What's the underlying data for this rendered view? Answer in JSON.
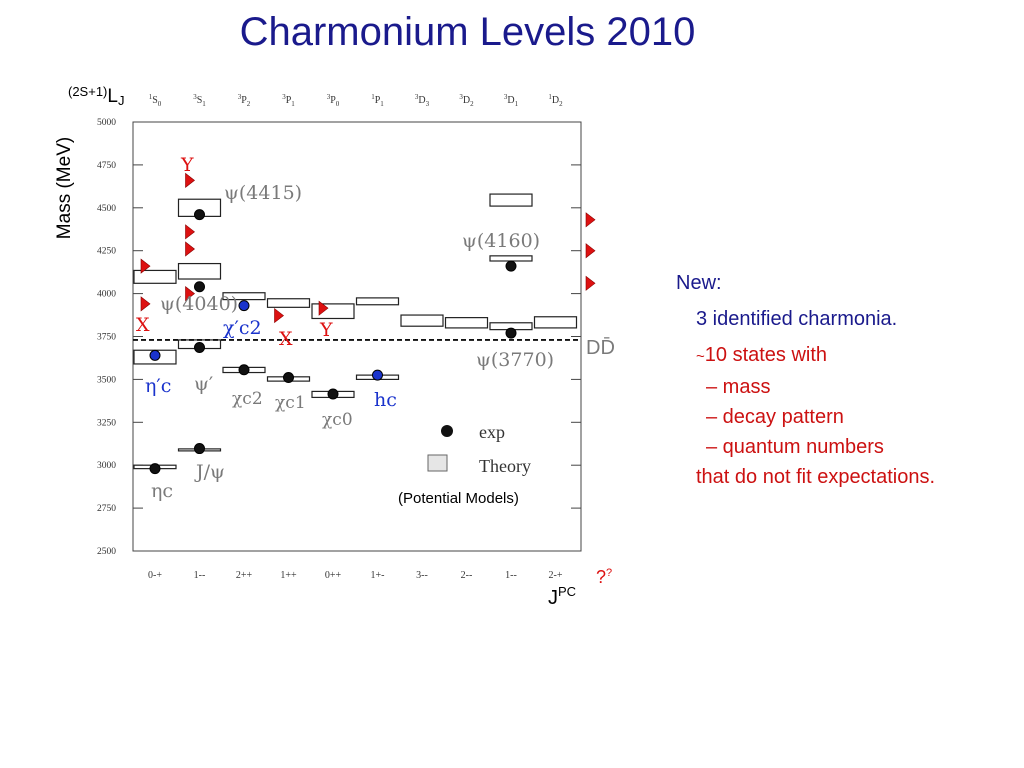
{
  "slide": {
    "title": "Charmonium Levels 2010"
  },
  "notes": {
    "heading": "New:",
    "identified": "3 identified charmonia.",
    "states_prefix": "~",
    "states": "10 states with",
    "items": [
      "– mass",
      "– decay pattern",
      "– quantum numbers"
    ],
    "conclusion": "that do not fit expectations."
  },
  "colors": {
    "title": "#1a1a8c",
    "note_blue": "#1a1a8c",
    "note_red": "#cc1111",
    "exotic_marker": "#dd1111",
    "new_state": "#1a33cc",
    "label_gray": "#7a7a7a",
    "axis_black": "#222222"
  },
  "chart_data": {
    "type": "scatter",
    "ylabel": "Mass (MeV)",
    "ylim": [
      2500,
      5000
    ],
    "yticks": [
      2500,
      2750,
      3000,
      3250,
      3500,
      3750,
      4000,
      4250,
      4500,
      4750,
      5000
    ],
    "top_label_prefix": "(2S+1)",
    "top_label_main": "L",
    "top_label_sub": "J",
    "columns": [
      {
        "top": "1S0",
        "top_sup": "1",
        "top_base": "S",
        "top_sub": "0",
        "bottom": "0-+"
      },
      {
        "top": "3S1",
        "top_sup": "3",
        "top_base": "S",
        "top_sub": "1",
        "bottom": "1--"
      },
      {
        "top": "3P2",
        "top_sup": "3",
        "top_base": "P",
        "top_sub": "2",
        "bottom": "2++"
      },
      {
        "top": "3P1",
        "top_sup": "3",
        "top_base": "P",
        "top_sub": "1",
        "bottom": "1++"
      },
      {
        "top": "3P0",
        "top_sup": "3",
        "top_base": "P",
        "top_sub": "0",
        "bottom": "0++"
      },
      {
        "top": "1P1",
        "top_sup": "1",
        "top_base": "P",
        "top_sub": "1",
        "bottom": "1+-"
      },
      {
        "top": "3D3",
        "top_sup": "3",
        "top_base": "D",
        "top_sub": "3",
        "bottom": "3--"
      },
      {
        "top": "3D2",
        "top_sup": "3",
        "top_base": "D",
        "top_sub": "2",
        "bottom": "2--"
      },
      {
        "top": "3D1",
        "top_sup": "3",
        "top_base": "D",
        "top_sub": "1",
        "bottom": "1--"
      },
      {
        "top": "1D2",
        "top_sup": "1",
        "top_base": "D",
        "top_sub": "2",
        "bottom": "2-+"
      }
    ],
    "xlabel_main": "J",
    "xlabel_sup": "PC",
    "unknown_label": "?",
    "unknown_sup": "?",
    "threshold": {
      "label": "DD̄",
      "mass": 3730
    },
    "theory_boxes": [
      {
        "col": 0,
        "low": 2980,
        "high": 3000
      },
      {
        "col": 0,
        "low": 3590,
        "high": 3670
      },
      {
        "col": 0,
        "low": 4060,
        "high": 4135
      },
      {
        "col": 1,
        "low": 3085,
        "high": 3095
      },
      {
        "col": 1,
        "low": 3680,
        "high": 3730
      },
      {
        "col": 1,
        "low": 4085,
        "high": 4175
      },
      {
        "col": 1,
        "low": 4450,
        "high": 4550
      },
      {
        "col": 2,
        "low": 3540,
        "high": 3570
      },
      {
        "col": 2,
        "low": 3965,
        "high": 4005
      },
      {
        "col": 3,
        "low": 3490,
        "high": 3515
      },
      {
        "col": 3,
        "low": 3920,
        "high": 3970
      },
      {
        "col": 4,
        "low": 3395,
        "high": 3430
      },
      {
        "col": 4,
        "low": 3855,
        "high": 3940
      },
      {
        "col": 5,
        "low": 3500,
        "high": 3525
      },
      {
        "col": 5,
        "low": 3935,
        "high": 3975
      },
      {
        "col": 6,
        "low": 3810,
        "high": 3875
      },
      {
        "col": 7,
        "low": 3800,
        "high": 3860
      },
      {
        "col": 8,
        "low": 3790,
        "high": 3830
      },
      {
        "col": 8,
        "low": 4190,
        "high": 4220
      },
      {
        "col": 8,
        "low": 4510,
        "high": 4580
      },
      {
        "col": 9,
        "low": 3800,
        "high": 3865
      }
    ],
    "exp_points": [
      {
        "col": 0,
        "mass": 2980,
        "color": "black"
      },
      {
        "col": 0,
        "mass": 3640,
        "color": "blue"
      },
      {
        "col": 1,
        "mass": 3097,
        "color": "black"
      },
      {
        "col": 1,
        "mass": 3686,
        "color": "black"
      },
      {
        "col": 1,
        "mass": 4040,
        "color": "black"
      },
      {
        "col": 1,
        "mass": 4460,
        "color": "black"
      },
      {
        "col": 2,
        "mass": 3556,
        "color": "black"
      },
      {
        "col": 2,
        "mass": 3930,
        "color": "blue"
      },
      {
        "col": 3,
        "mass": 3511,
        "color": "black"
      },
      {
        "col": 4,
        "mass": 3415,
        "color": "black"
      },
      {
        "col": 5,
        "mass": 3525,
        "color": "blue"
      },
      {
        "col": 8,
        "mass": 3770,
        "color": "black"
      },
      {
        "col": 8,
        "mass": 4160,
        "color": "black"
      }
    ],
    "exotic_markers": [
      {
        "pos": 0,
        "mass": 3940
      },
      {
        "pos": 0,
        "mass": 4160
      },
      {
        "pos": 1,
        "mass": 4660
      },
      {
        "pos": 1,
        "mass": 4360
      },
      {
        "pos": 1,
        "mass": 4260
      },
      {
        "pos": 1,
        "mass": 4000
      },
      {
        "pos": 3,
        "mass": 3872
      },
      {
        "pos": 4,
        "mass": 3915
      },
      {
        "pos": 10,
        "mass": 4430
      },
      {
        "pos": 10,
        "mass": 4250
      },
      {
        "pos": 10,
        "mass": 4060
      }
    ],
    "state_labels": [
      {
        "text": "Y",
        "kind": "red"
      },
      {
        "text": "X",
        "kind": "red"
      },
      {
        "text": "X",
        "kind": "red"
      },
      {
        "text": "Y",
        "kind": "red"
      },
      {
        "text": "ψ(4415)",
        "kind": "gray"
      },
      {
        "text": "ψ(4160)",
        "kind": "gray"
      },
      {
        "text": "ψ(4040)",
        "kind": "gray"
      },
      {
        "text": "ψ(3770)",
        "kind": "gray"
      },
      {
        "text": "ψ′",
        "kind": "gray"
      },
      {
        "text": "J/ψ",
        "kind": "gray"
      },
      {
        "text": "ηc",
        "kind": "gray"
      },
      {
        "text": "η′c",
        "kind": "blue"
      },
      {
        "text": "χ′c2",
        "kind": "blue"
      },
      {
        "text": "hc",
        "kind": "blue"
      },
      {
        "text": "χc2",
        "kind": "gray"
      },
      {
        "text": "χc1",
        "kind": "gray"
      },
      {
        "text": "χc0",
        "kind": "gray"
      }
    ],
    "legend": {
      "exp": "exp",
      "theory": "Theory",
      "note": "(Potential Models)",
      "position": "lower-right"
    }
  }
}
